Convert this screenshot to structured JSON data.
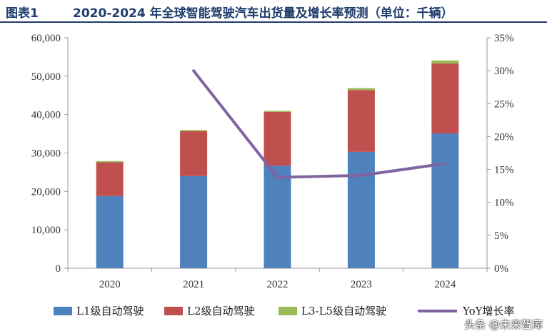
{
  "header": {
    "figure_label": "图表1",
    "title": "2020-2024 年全球智能驾驶汽车出货量及增长率预测（单位：千辆）"
  },
  "watermark": "头条 @未来智库",
  "colors": {
    "l1": "#4f81bd",
    "l2": "#c0504d",
    "l3l5": "#9bbb59",
    "yoy": "#8064a2",
    "axis": "#999999"
  },
  "chart_data": {
    "type": "bar",
    "stacked": true,
    "title": "2020-2024 年全球智能驾驶汽车出货量及增长率预测（单位：千辆）",
    "categories": [
      "2020",
      "2021",
      "2022",
      "2023",
      "2024"
    ],
    "series": [
      {
        "name": "L1级自动驾驶",
        "values": [
          18800,
          24000,
          26700,
          30300,
          35100
        ]
      },
      {
        "name": "L2级自动驾驶",
        "values": [
          8800,
          11700,
          14000,
          16100,
          18200
        ]
      },
      {
        "name": "L3-L5级自动驾驶",
        "values": [
          300,
          300,
          300,
          500,
          800
        ]
      }
    ],
    "line_series": {
      "name": "YoY增长率",
      "axis": "right",
      "values": [
        null,
        30.0,
        13.8,
        14.1,
        15.9
      ]
    },
    "ylim": [
      0,
      60000
    ],
    "y2lim": [
      0,
      35
    ],
    "yticks": [
      "0",
      "10,000",
      "20,000",
      "30,000",
      "40,000",
      "50,000",
      "60,000"
    ],
    "y2ticks": [
      "0%",
      "5%",
      "10%",
      "15%",
      "20%",
      "25%",
      "30%",
      "35%"
    ],
    "xlabel": "",
    "ylabel": "",
    "legend_position": "bottom",
    "grid": false
  }
}
